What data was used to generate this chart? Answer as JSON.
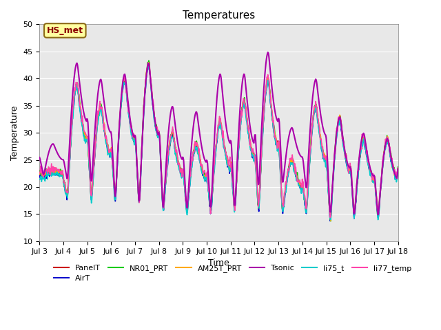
{
  "title": "Temperatures",
  "xlabel": "Time",
  "ylabel": "Temperature",
  "annotation_text": "HS_met",
  "annotation_color": "#8B0000",
  "annotation_bg": "#FFFFA0",
  "annotation_border": "#8B6914",
  "ylim": [
    10,
    50
  ],
  "xlim_days": [
    3,
    18
  ],
  "xtick_days": [
    3,
    4,
    5,
    6,
    7,
    8,
    9,
    10,
    11,
    12,
    13,
    14,
    15,
    16,
    17,
    18
  ],
  "xtick_labels": [
    "Jul 3",
    "Jul 4",
    "Jul 5",
    "Jul 6",
    "Jul 7",
    "Jul 8",
    "Jul 9",
    "Jul 10",
    "Jul 11",
    "Jul 12",
    "Jul 13",
    "Jul 14",
    "Jul 15",
    "Jul 16",
    "Jul 17",
    "Jul 18"
  ],
  "ytick_labels": [
    "10",
    "15",
    "20",
    "25",
    "30",
    "35",
    "40",
    "45",
    "50"
  ],
  "ytick_values": [
    10,
    15,
    20,
    25,
    30,
    35,
    40,
    45,
    50
  ],
  "bg_color": "#E8E8E8",
  "series": {
    "PanelT": {
      "color": "#CC0000",
      "lw": 1.2,
      "zorder": 3
    },
    "AirT": {
      "color": "#0000CC",
      "lw": 1.2,
      "zorder": 3
    },
    "NR01_PRT": {
      "color": "#00CC00",
      "lw": 1.2,
      "zorder": 3
    },
    "AM25T_PRT": {
      "color": "#FFAA00",
      "lw": 1.2,
      "zorder": 3
    },
    "Tsonic": {
      "color": "#AA00AA",
      "lw": 1.5,
      "zorder": 4
    },
    "li75_t": {
      "color": "#00CCCC",
      "lw": 1.2,
      "zorder": 3
    },
    "li77_temp": {
      "color": "#FF44AA",
      "lw": 1.2,
      "zorder": 3
    }
  }
}
